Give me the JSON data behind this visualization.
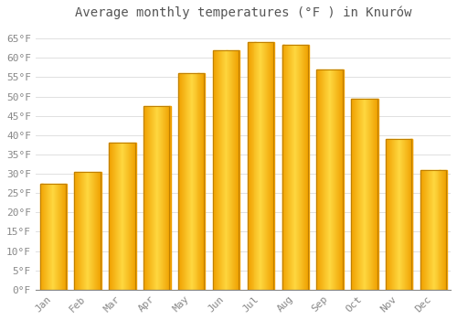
{
  "title": "Average monthly temperatures (°F ) in Knurów",
  "months": [
    "Jan",
    "Feb",
    "Mar",
    "Apr",
    "May",
    "Jun",
    "Jul",
    "Aug",
    "Sep",
    "Oct",
    "Nov",
    "Dec"
  ],
  "values": [
    27.5,
    30.5,
    38.0,
    47.5,
    56.0,
    62.0,
    64.0,
    63.5,
    57.0,
    49.5,
    39.0,
    31.0
  ],
  "bar_color_center": "#FFD060",
  "bar_color_edge": "#F0A000",
  "ylim": [
    0,
    68
  ],
  "yticks": [
    0,
    5,
    10,
    15,
    20,
    25,
    30,
    35,
    40,
    45,
    50,
    55,
    60,
    65
  ],
  "ytick_labels": [
    "0°F",
    "5°F",
    "10°F",
    "15°F",
    "20°F",
    "25°F",
    "30°F",
    "35°F",
    "40°F",
    "45°F",
    "50°F",
    "55°F",
    "60°F",
    "65°F"
  ],
  "background_color": "#ffffff",
  "grid_color": "#e0e0e0",
  "bar_border_color": "#C08000",
  "title_fontsize": 10,
  "tick_fontsize": 8,
  "tick_color": "#888888",
  "title_color": "#555555"
}
